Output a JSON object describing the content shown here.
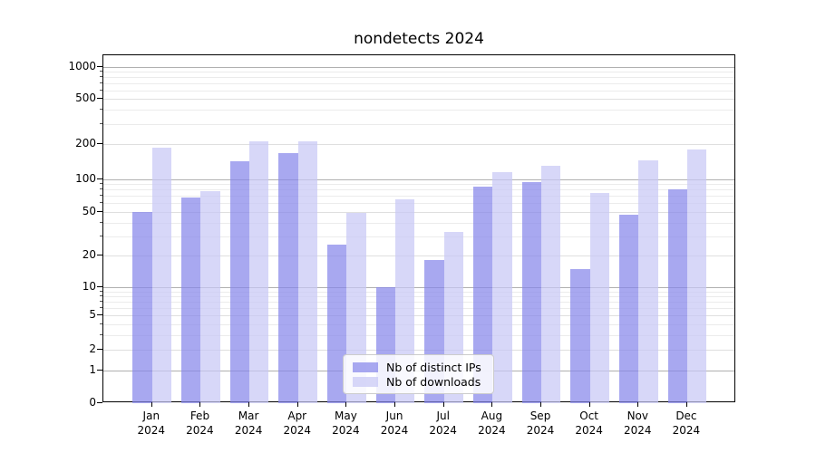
{
  "title": "nondetects 2024",
  "chart_data": {
    "type": "bar",
    "title": "nondetects 2024",
    "x_months": [
      "Jan",
      "Feb",
      "Mar",
      "Apr",
      "May",
      "Jun",
      "Jul",
      "Aug",
      "Sep",
      "Oct",
      "Nov",
      "Dec"
    ],
    "x_year": "2024",
    "series": [
      {
        "name": "Nb of distinct IPs",
        "color": "rgba(134,134,234,0.72)",
        "color_solid": "#aaaaef",
        "values": [
          50,
          68,
          143,
          167,
          25,
          10,
          18,
          85,
          93,
          15,
          47,
          80
        ]
      },
      {
        "name": "Nb of downloads",
        "color": "rgba(199,199,245,0.72)",
        "color_solid": "#d8d8f8",
        "values": [
          185,
          78,
          210,
          212,
          49,
          65,
          33,
          115,
          131,
          75,
          145,
          178
        ]
      }
    ],
    "yscale": "log10(value+1)",
    "ylim": [
      0,
      1100
    ],
    "ytick_values": [
      0,
      1,
      2,
      5,
      10,
      20,
      50,
      100,
      200,
      500,
      1000
    ],
    "ytick_major_values": [
      1,
      10,
      100,
      1000
    ],
    "ytick_minor_labeled": [
      2,
      5,
      20,
      50,
      200,
      500
    ],
    "ytick_minor_unlabeled": [
      3,
      4,
      6,
      7,
      8,
      9,
      30,
      40,
      60,
      70,
      80,
      90,
      300,
      400,
      600,
      700,
      800,
      900
    ],
    "grid": "both",
    "legend_position": "lower-center"
  }
}
